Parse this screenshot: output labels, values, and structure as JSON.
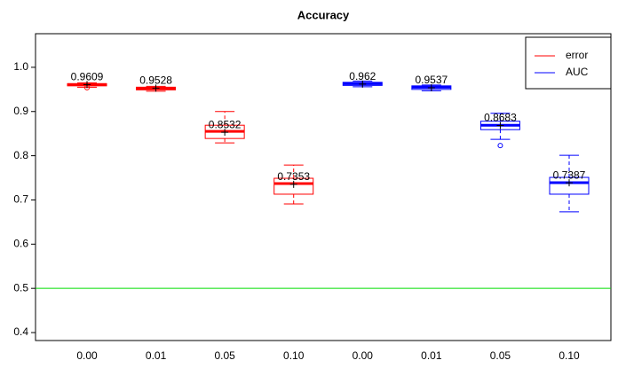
{
  "chart_data": {
    "type": "boxplot",
    "title": "Accuracy",
    "categories": [
      "0.00",
      "0.01",
      "0.05",
      "0.10",
      "0.00",
      "0.01",
      "0.05",
      "0.10"
    ],
    "series": [
      {
        "name": "error",
        "color": "#ff0000",
        "values": [
          0.9609,
          0.9528,
          0.8532,
          0.7353,
          null,
          null,
          null,
          null
        ],
        "whisker_low": [
          0.955,
          0.946,
          0.829,
          0.691,
          null,
          null,
          null,
          null
        ],
        "q1": [
          0.958,
          0.949,
          0.839,
          0.713,
          null,
          null,
          null,
          null
        ],
        "median": [
          0.961,
          0.952,
          0.855,
          0.737,
          null,
          null,
          null,
          null
        ],
        "q3": [
          0.963,
          0.955,
          0.869,
          0.749,
          null,
          null,
          null,
          null
        ],
        "whisker_high": [
          0.965,
          0.957,
          0.9,
          0.779,
          null,
          null,
          null,
          null
        ],
        "outliers": [
          [
            0.954
          ],
          [],
          [],
          [],
          [],
          [],
          [],
          []
        ]
      },
      {
        "name": "AUC",
        "color": "#0000ff",
        "values": [
          null,
          null,
          null,
          null,
          0.962,
          0.9537,
          0.8683,
          0.7387
        ],
        "whisker_low": [
          null,
          null,
          null,
          null,
          0.956,
          0.947,
          0.837,
          0.673
        ],
        "q1": [
          null,
          null,
          null,
          null,
          0.959,
          0.95,
          0.859,
          0.713
        ],
        "median": [
          null,
          null,
          null,
          null,
          0.963,
          0.955,
          0.869,
          0.739
        ],
        "q3": [
          null,
          null,
          null,
          null,
          0.966,
          0.958,
          0.878,
          0.751
        ],
        "whisker_high": [
          null,
          null,
          null,
          null,
          0.969,
          0.96,
          0.896,
          0.801
        ],
        "outliers": [
          [],
          [],
          [],
          [],
          [],
          [],
          [
            0.823
          ],
          []
        ]
      }
    ],
    "hline": 0.5,
    "hline_color": "#00dd00",
    "ylim": [
      0.382,
      1.076
    ],
    "yticks": [
      0.4,
      0.5,
      0.6,
      0.7,
      0.8,
      0.9,
      {
        "value": 1,
        "label": "1.0"
      }
    ],
    "legend": "top-right"
  }
}
